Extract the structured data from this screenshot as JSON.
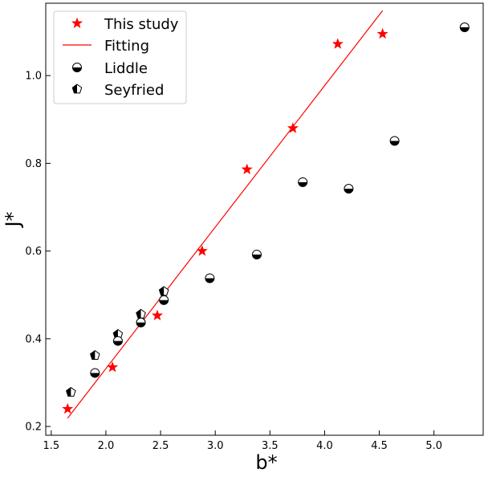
{
  "chart_data": {
    "type": "scatter",
    "title": "",
    "xlabel": "b*",
    "ylabel": "J*",
    "xlim": [
      1.45,
      5.45
    ],
    "ylim": [
      0.18,
      1.165
    ],
    "xticks": [
      1.5,
      2.0,
      2.5,
      3.0,
      3.5,
      4.0,
      4.5,
      5.0
    ],
    "xtick_labels": [
      "1.5",
      "2.0",
      "2.5",
      "3.0",
      "3.5",
      "4.0",
      "4.5",
      "5.0"
    ],
    "yticks": [
      0.2,
      0.4,
      0.6,
      0.8,
      1.0
    ],
    "ytick_labels": [
      "0.2",
      "0.4",
      "0.6",
      "0.8",
      "1.0"
    ],
    "grid": false,
    "legend_position": "top-left",
    "series": [
      {
        "name": "This study",
        "marker": "star",
        "color": "#ff0000",
        "x": [
          1.65,
          2.06,
          2.47,
          2.88,
          3.29,
          3.71,
          4.12,
          4.53
        ],
        "y": [
          0.24,
          0.335,
          0.453,
          0.6,
          0.786,
          0.88,
          1.072,
          1.095
        ]
      },
      {
        "name": "Fitting",
        "marker": "line",
        "color": "#ff0000",
        "x": [
          1.65,
          4.53
        ],
        "y": [
          0.219,
          1.148
        ]
      },
      {
        "name": "Liddle",
        "marker": "half-filled-circle-bottom",
        "color": "#000000",
        "x": [
          1.9,
          2.11,
          2.32,
          2.53,
          2.95,
          3.38,
          3.8,
          4.22,
          4.64,
          5.28
        ],
        "y": [
          0.322,
          0.395,
          0.437,
          0.488,
          0.538,
          0.592,
          0.757,
          0.742,
          0.851,
          1.11
        ]
      },
      {
        "name": "Seyfried",
        "marker": "half-filled-pentagon-left",
        "color": "#000000",
        "x": [
          1.68,
          1.9,
          2.11,
          2.32,
          2.53
        ],
        "y": [
          0.278,
          0.362,
          0.41,
          0.456,
          0.508
        ]
      }
    ]
  }
}
